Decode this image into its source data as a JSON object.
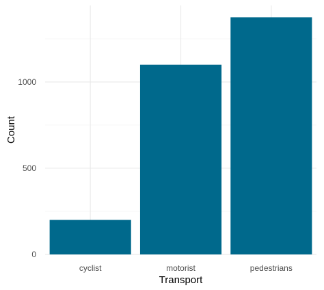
{
  "chart_data": {
    "type": "bar",
    "title": "",
    "xlabel": "Transport",
    "ylabel": "Count",
    "categories": [
      "cyclist",
      "motorist",
      "pedestrians"
    ],
    "values": [
      200,
      1100,
      1375
    ],
    "ylim": [
      0,
      1375
    ],
    "yticks": [
      0,
      500,
      1000
    ],
    "grid": true,
    "legend": "none",
    "colors": {
      "bar": "#00698c",
      "grid_major": "#ebebeb",
      "grid_minor": "#f5f5f5",
      "tick_text": "#4d4d4d",
      "axis_title": "#000000"
    }
  }
}
